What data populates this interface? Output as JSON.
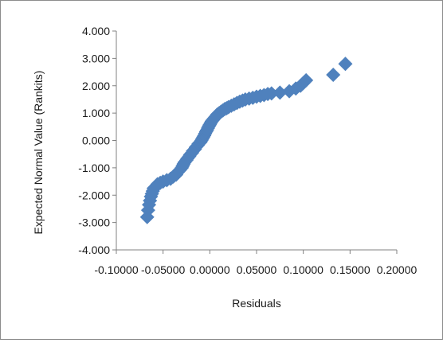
{
  "chart_data": {
    "type": "scatter",
    "xlabel": "Residuals",
    "ylabel": "Expected  Normal  Value  (Rankits)",
    "xlim": [
      -0.1,
      0.2
    ],
    "ylim": [
      -4,
      4
    ],
    "x_ticks": [
      -0.1,
      -0.05,
      0.0,
      0.05,
      0.1,
      0.15,
      0.2
    ],
    "x_tick_labels": [
      "-0.10000",
      "-0.05000",
      "0.00000",
      "0.05000",
      "0.10000",
      "0.15000",
      "0.20000"
    ],
    "y_ticks": [
      -4,
      -3,
      -2,
      -1,
      0,
      1,
      2,
      3,
      4
    ],
    "y_tick_labels": [
      "-4.000",
      "-3.000",
      "-2.000",
      "-1.000",
      "0.000",
      "1.000",
      "2.000",
      "3.000",
      "4.000"
    ],
    "grid": false,
    "legend": "none",
    "marker": "diamond",
    "marker_color": "#4F81BD",
    "series": [
      {
        "x": [
          -0.067,
          -0.066,
          -0.065,
          -0.064,
          -0.063,
          -0.062,
          -0.061,
          -0.06,
          -0.058,
          -0.056,
          -0.053,
          -0.05,
          -0.046,
          -0.042,
          -0.039,
          -0.036,
          -0.034,
          -0.032,
          -0.03,
          -0.029,
          -0.028,
          -0.027,
          -0.025,
          -0.024,
          -0.022,
          -0.021,
          -0.019,
          -0.018,
          -0.016,
          -0.015,
          -0.013,
          -0.012,
          -0.01,
          -0.009,
          -0.008,
          -0.007,
          -0.006,
          -0.005,
          -0.004,
          -0.003,
          -0.002,
          -0.001,
          0.0,
          0.001,
          0.002,
          0.003,
          0.004,
          0.005,
          0.006,
          0.007,
          0.008,
          0.01,
          0.012,
          0.014,
          0.016,
          0.018,
          0.02,
          0.023,
          0.026,
          0.029,
          0.032,
          0.035,
          0.038,
          0.042,
          0.046,
          0.05,
          0.054,
          0.058,
          0.062,
          0.066,
          0.075,
          0.085,
          0.092,
          0.097,
          0.1,
          0.103,
          0.132,
          0.145
        ],
        "y": [
          -2.8,
          -2.55,
          -2.35,
          -2.2,
          -2.05,
          -1.95,
          -1.85,
          -1.75,
          -1.7,
          -1.6,
          -1.55,
          -1.5,
          -1.45,
          -1.4,
          -1.32,
          -1.25,
          -1.15,
          -1.08,
          -1.0,
          -0.93,
          -0.86,
          -0.8,
          -0.72,
          -0.66,
          -0.58,
          -0.52,
          -0.45,
          -0.38,
          -0.32,
          -0.25,
          -0.18,
          -0.12,
          -0.06,
          0.0,
          0.06,
          0.12,
          0.18,
          0.25,
          0.32,
          0.38,
          0.45,
          0.52,
          0.58,
          0.64,
          0.7,
          0.74,
          0.78,
          0.82,
          0.86,
          0.9,
          0.95,
          1.0,
          1.05,
          1.1,
          1.15,
          1.18,
          1.22,
          1.27,
          1.32,
          1.37,
          1.42,
          1.46,
          1.5,
          1.53,
          1.56,
          1.6,
          1.63,
          1.66,
          1.7,
          1.72,
          1.75,
          1.8,
          1.9,
          2.0,
          2.1,
          2.2,
          2.4,
          2.8
        ]
      }
    ]
  }
}
